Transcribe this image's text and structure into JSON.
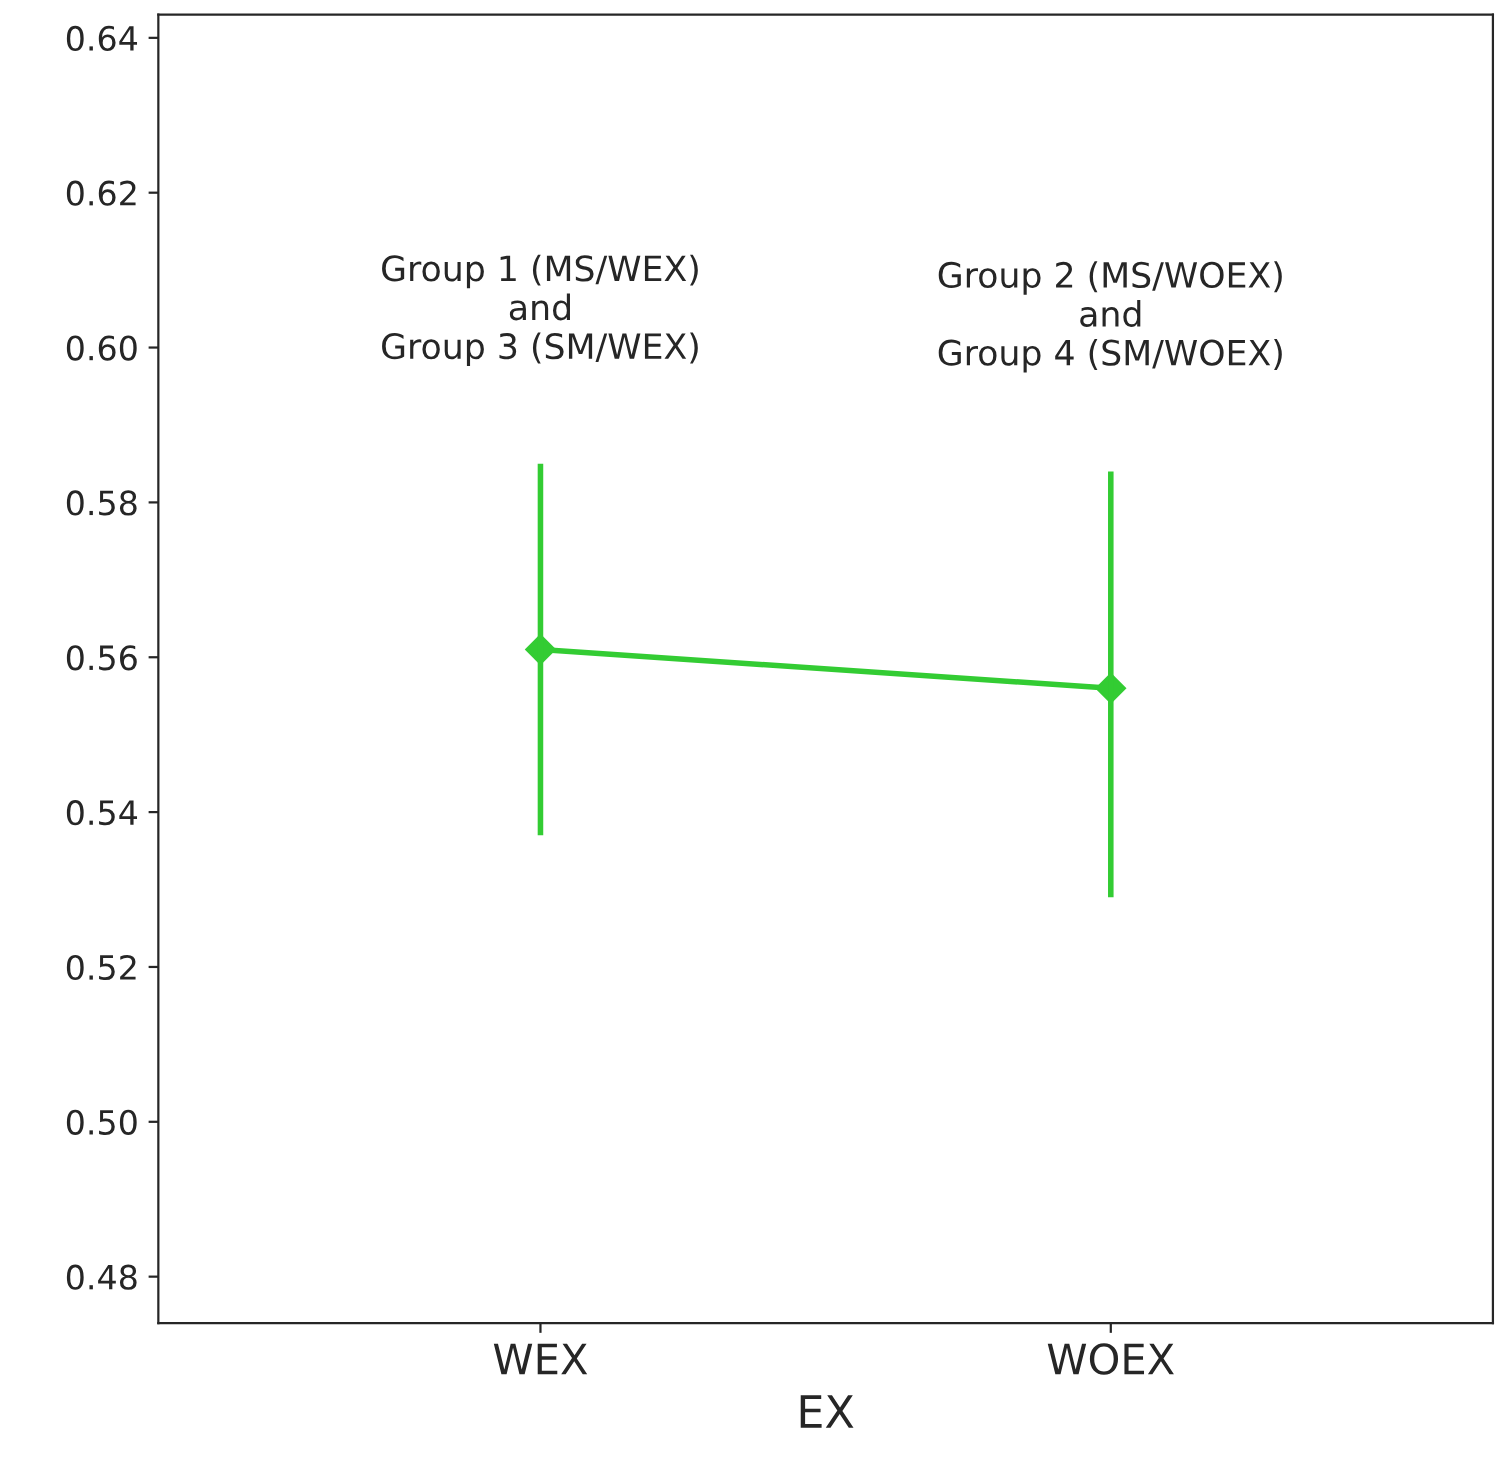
{
  "chart_data": {
    "type": "line",
    "xlabel": "EX",
    "categories": [
      "WEX",
      "WOEX"
    ],
    "series": [
      {
        "color": "#33cc33",
        "values": [
          0.561,
          0.556
        ],
        "errors": [
          [
            0.537,
            0.585
          ],
          [
            0.529,
            0.584
          ]
        ]
      }
    ],
    "marker": "diamond",
    "line_style": "solid",
    "ylim": [
      0.474,
      0.643
    ],
    "yticks": [
      0.48,
      {
        "value": 0.5,
        "label": "0.50"
      },
      0.52,
      0.54,
      0.56,
      0.58,
      {
        "value": 0.6,
        "label": "0.60"
      },
      0.62,
      0.64
    ],
    "grid": false,
    "annotations": [
      "Group 1 (MS/WEX)\nand\nGroup 3 (SM/WEX)",
      "Group 2 (MS/WOEX)\nand\nGroup 4 (SM/WOEX)"
    ]
  }
}
